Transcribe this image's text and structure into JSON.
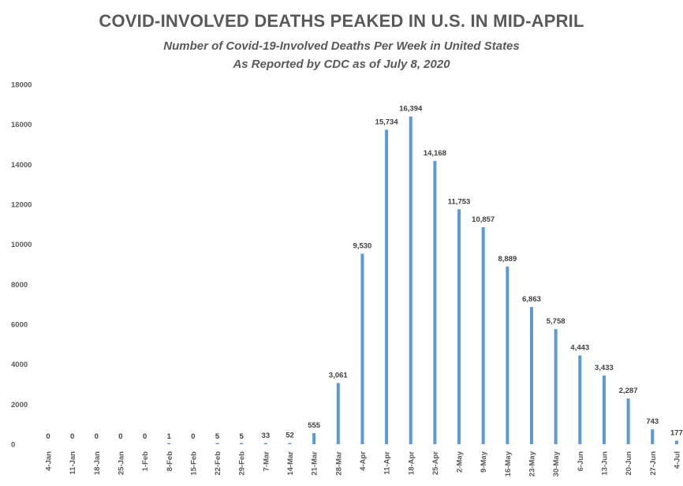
{
  "chart_data": {
    "type": "bar",
    "title": "COVID-INVOLVED DEATHS PEAKED IN U.S. IN MID-APRIL",
    "subtitle": [
      "Number of Covid-19-Involved Deaths Per Week in United States",
      "As Reported by CDC as of July 8, 2020"
    ],
    "xlabel": "",
    "ylabel": "",
    "ylim": [
      0,
      18000
    ],
    "yticks": [
      "0",
      "2000",
      "4000",
      "6000",
      "8000",
      "10000",
      "12000",
      "14000",
      "16000",
      "18000"
    ],
    "grid": false,
    "legend": "none",
    "bar_color": "#5b9bd5",
    "categories": [
      "4-Jan",
      "11-Jan",
      "18-Jan",
      "25-Jan",
      "1-Feb",
      "8-Feb",
      "15-Feb",
      "22-Feb",
      "29-Feb",
      "7-Mar",
      "14-Mar",
      "21-Mar",
      "28-Mar",
      "4-Apr",
      "11-Apr",
      "18-Apr",
      "25-Apr",
      "2-May",
      "9-May",
      "16-May",
      "23-May",
      "30-May",
      "6-Jun",
      "13-Jun",
      "20-Jun",
      "27-Jun",
      "4-Jul"
    ],
    "values": [
      0,
      0,
      0,
      0,
      0,
      1,
      0,
      5,
      5,
      33,
      52,
      555,
      3061,
      9530,
      15734,
      16394,
      14168,
      11753,
      10857,
      8889,
      6863,
      5758,
      4443,
      3433,
      2287,
      743,
      177
    ],
    "data_labels": [
      "0",
      "0",
      "0",
      "0",
      "0",
      "1",
      "0",
      "5",
      "5",
      "33",
      "52",
      "555",
      "3,061",
      "9,530",
      "15,734",
      "16,394",
      "14,168",
      "11,753",
      "10,857",
      "8,889",
      "6,863",
      "5,758",
      "4,443",
      "3,433",
      "2,287",
      "743",
      "177"
    ]
  }
}
